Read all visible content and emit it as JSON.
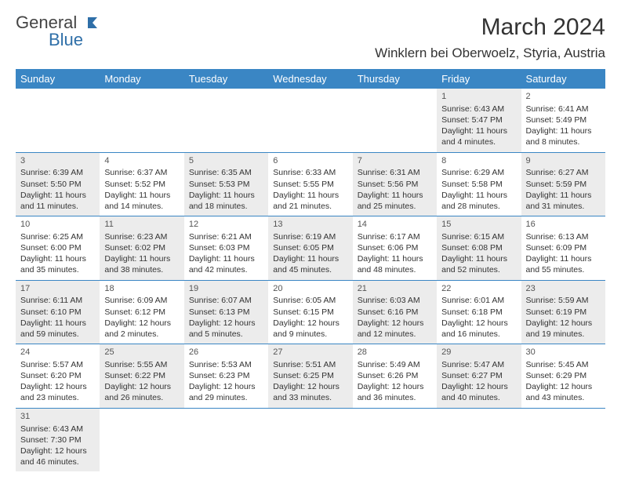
{
  "logo": {
    "text1": "General",
    "text2": "Blue"
  },
  "title": "March 2024",
  "location": "Winklern bei Oberwoelz, Styria, Austria",
  "colors": {
    "header_bg": "#3a86c4",
    "header_fg": "#ffffff",
    "shaded_bg": "#ececec",
    "border": "#3a86c4",
    "text": "#333333",
    "logo_gray": "#444444",
    "logo_blue": "#2f6fa8"
  },
  "weekdays": [
    "Sunday",
    "Monday",
    "Tuesday",
    "Wednesday",
    "Thursday",
    "Friday",
    "Saturday"
  ],
  "rows": [
    [
      {
        "empty": true
      },
      {
        "empty": true
      },
      {
        "empty": true
      },
      {
        "empty": true
      },
      {
        "empty": true
      },
      {
        "day": "1",
        "shaded": true,
        "sunrise": "Sunrise: 6:43 AM",
        "sunset": "Sunset: 5:47 PM",
        "daylight1": "Daylight: 11 hours",
        "daylight2": "and 4 minutes."
      },
      {
        "day": "2",
        "shaded": false,
        "sunrise": "Sunrise: 6:41 AM",
        "sunset": "Sunset: 5:49 PM",
        "daylight1": "Daylight: 11 hours",
        "daylight2": "and 8 minutes."
      }
    ],
    [
      {
        "day": "3",
        "shaded": true,
        "sunrise": "Sunrise: 6:39 AM",
        "sunset": "Sunset: 5:50 PM",
        "daylight1": "Daylight: 11 hours",
        "daylight2": "and 11 minutes."
      },
      {
        "day": "4",
        "shaded": false,
        "sunrise": "Sunrise: 6:37 AM",
        "sunset": "Sunset: 5:52 PM",
        "daylight1": "Daylight: 11 hours",
        "daylight2": "and 14 minutes."
      },
      {
        "day": "5",
        "shaded": true,
        "sunrise": "Sunrise: 6:35 AM",
        "sunset": "Sunset: 5:53 PM",
        "daylight1": "Daylight: 11 hours",
        "daylight2": "and 18 minutes."
      },
      {
        "day": "6",
        "shaded": false,
        "sunrise": "Sunrise: 6:33 AM",
        "sunset": "Sunset: 5:55 PM",
        "daylight1": "Daylight: 11 hours",
        "daylight2": "and 21 minutes."
      },
      {
        "day": "7",
        "shaded": true,
        "sunrise": "Sunrise: 6:31 AM",
        "sunset": "Sunset: 5:56 PM",
        "daylight1": "Daylight: 11 hours",
        "daylight2": "and 25 minutes."
      },
      {
        "day": "8",
        "shaded": false,
        "sunrise": "Sunrise: 6:29 AM",
        "sunset": "Sunset: 5:58 PM",
        "daylight1": "Daylight: 11 hours",
        "daylight2": "and 28 minutes."
      },
      {
        "day": "9",
        "shaded": true,
        "sunrise": "Sunrise: 6:27 AM",
        "sunset": "Sunset: 5:59 PM",
        "daylight1": "Daylight: 11 hours",
        "daylight2": "and 31 minutes."
      }
    ],
    [
      {
        "day": "10",
        "shaded": false,
        "sunrise": "Sunrise: 6:25 AM",
        "sunset": "Sunset: 6:00 PM",
        "daylight1": "Daylight: 11 hours",
        "daylight2": "and 35 minutes."
      },
      {
        "day": "11",
        "shaded": true,
        "sunrise": "Sunrise: 6:23 AM",
        "sunset": "Sunset: 6:02 PM",
        "daylight1": "Daylight: 11 hours",
        "daylight2": "and 38 minutes."
      },
      {
        "day": "12",
        "shaded": false,
        "sunrise": "Sunrise: 6:21 AM",
        "sunset": "Sunset: 6:03 PM",
        "daylight1": "Daylight: 11 hours",
        "daylight2": "and 42 minutes."
      },
      {
        "day": "13",
        "shaded": true,
        "sunrise": "Sunrise: 6:19 AM",
        "sunset": "Sunset: 6:05 PM",
        "daylight1": "Daylight: 11 hours",
        "daylight2": "and 45 minutes."
      },
      {
        "day": "14",
        "shaded": false,
        "sunrise": "Sunrise: 6:17 AM",
        "sunset": "Sunset: 6:06 PM",
        "daylight1": "Daylight: 11 hours",
        "daylight2": "and 48 minutes."
      },
      {
        "day": "15",
        "shaded": true,
        "sunrise": "Sunrise: 6:15 AM",
        "sunset": "Sunset: 6:08 PM",
        "daylight1": "Daylight: 11 hours",
        "daylight2": "and 52 minutes."
      },
      {
        "day": "16",
        "shaded": false,
        "sunrise": "Sunrise: 6:13 AM",
        "sunset": "Sunset: 6:09 PM",
        "daylight1": "Daylight: 11 hours",
        "daylight2": "and 55 minutes."
      }
    ],
    [
      {
        "day": "17",
        "shaded": true,
        "sunrise": "Sunrise: 6:11 AM",
        "sunset": "Sunset: 6:10 PM",
        "daylight1": "Daylight: 11 hours",
        "daylight2": "and 59 minutes."
      },
      {
        "day": "18",
        "shaded": false,
        "sunrise": "Sunrise: 6:09 AM",
        "sunset": "Sunset: 6:12 PM",
        "daylight1": "Daylight: 12 hours",
        "daylight2": "and 2 minutes."
      },
      {
        "day": "19",
        "shaded": true,
        "sunrise": "Sunrise: 6:07 AM",
        "sunset": "Sunset: 6:13 PM",
        "daylight1": "Daylight: 12 hours",
        "daylight2": "and 5 minutes."
      },
      {
        "day": "20",
        "shaded": false,
        "sunrise": "Sunrise: 6:05 AM",
        "sunset": "Sunset: 6:15 PM",
        "daylight1": "Daylight: 12 hours",
        "daylight2": "and 9 minutes."
      },
      {
        "day": "21",
        "shaded": true,
        "sunrise": "Sunrise: 6:03 AM",
        "sunset": "Sunset: 6:16 PM",
        "daylight1": "Daylight: 12 hours",
        "daylight2": "and 12 minutes."
      },
      {
        "day": "22",
        "shaded": false,
        "sunrise": "Sunrise: 6:01 AM",
        "sunset": "Sunset: 6:18 PM",
        "daylight1": "Daylight: 12 hours",
        "daylight2": "and 16 minutes."
      },
      {
        "day": "23",
        "shaded": true,
        "sunrise": "Sunrise: 5:59 AM",
        "sunset": "Sunset: 6:19 PM",
        "daylight1": "Daylight: 12 hours",
        "daylight2": "and 19 minutes."
      }
    ],
    [
      {
        "day": "24",
        "shaded": false,
        "sunrise": "Sunrise: 5:57 AM",
        "sunset": "Sunset: 6:20 PM",
        "daylight1": "Daylight: 12 hours",
        "daylight2": "and 23 minutes."
      },
      {
        "day": "25",
        "shaded": true,
        "sunrise": "Sunrise: 5:55 AM",
        "sunset": "Sunset: 6:22 PM",
        "daylight1": "Daylight: 12 hours",
        "daylight2": "and 26 minutes."
      },
      {
        "day": "26",
        "shaded": false,
        "sunrise": "Sunrise: 5:53 AM",
        "sunset": "Sunset: 6:23 PM",
        "daylight1": "Daylight: 12 hours",
        "daylight2": "and 29 minutes."
      },
      {
        "day": "27",
        "shaded": true,
        "sunrise": "Sunrise: 5:51 AM",
        "sunset": "Sunset: 6:25 PM",
        "daylight1": "Daylight: 12 hours",
        "daylight2": "and 33 minutes."
      },
      {
        "day": "28",
        "shaded": false,
        "sunrise": "Sunrise: 5:49 AM",
        "sunset": "Sunset: 6:26 PM",
        "daylight1": "Daylight: 12 hours",
        "daylight2": "and 36 minutes."
      },
      {
        "day": "29",
        "shaded": true,
        "sunrise": "Sunrise: 5:47 AM",
        "sunset": "Sunset: 6:27 PM",
        "daylight1": "Daylight: 12 hours",
        "daylight2": "and 40 minutes."
      },
      {
        "day": "30",
        "shaded": false,
        "sunrise": "Sunrise: 5:45 AM",
        "sunset": "Sunset: 6:29 PM",
        "daylight1": "Daylight: 12 hours",
        "daylight2": "and 43 minutes."
      }
    ],
    [
      {
        "day": "31",
        "shaded": true,
        "sunrise": "Sunrise: 6:43 AM",
        "sunset": "Sunset: 7:30 PM",
        "daylight1": "Daylight: 12 hours",
        "daylight2": "and 46 minutes."
      },
      {
        "empty": true
      },
      {
        "empty": true
      },
      {
        "empty": true
      },
      {
        "empty": true
      },
      {
        "empty": true
      },
      {
        "empty": true
      }
    ]
  ]
}
